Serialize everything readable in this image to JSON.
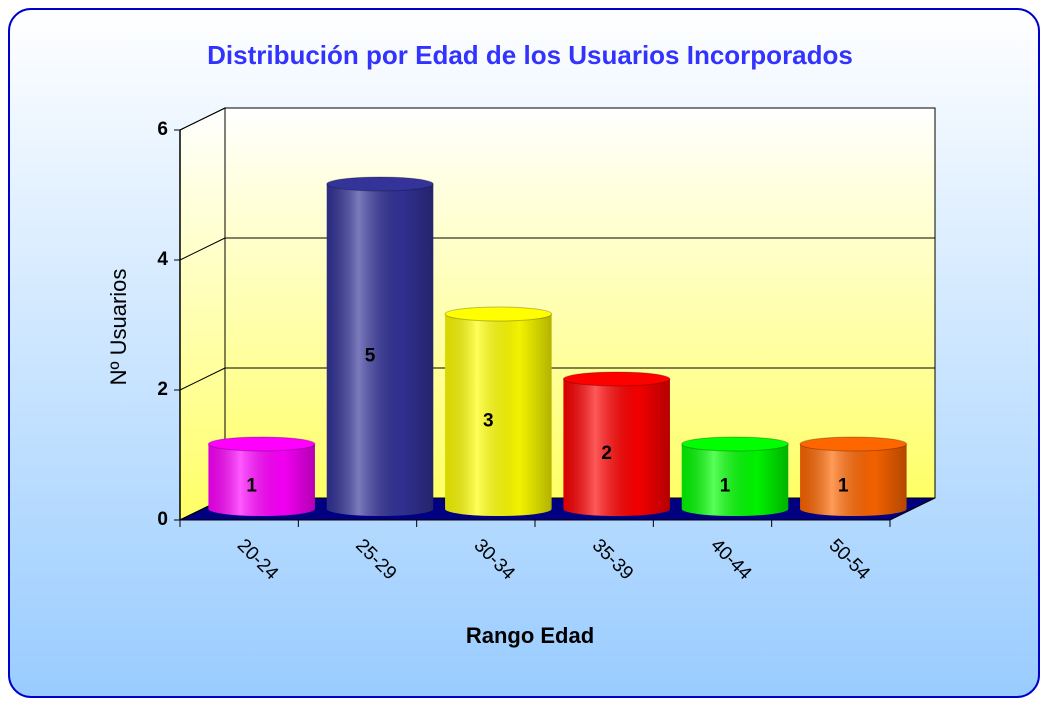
{
  "chart_data": {
    "type": "bar3d",
    "title": "Distribución por Edad de los Usuarios Incorporados",
    "x_label": "Rango Edad",
    "y_label": "Nº Usuarios",
    "categories": [
      "20-24",
      "25-29",
      "30-34",
      "35-39",
      "40-44",
      "50-54"
    ],
    "values": [
      1,
      5,
      3,
      2,
      1,
      1
    ],
    "colors": [
      "#ff00ff",
      "#333399",
      "#ffff00",
      "#ff0000",
      "#00ff00",
      "#ff6600"
    ],
    "ylim": [
      0,
      6
    ],
    "yticks": [
      0,
      2,
      4,
      6
    ],
    "grid": true
  }
}
